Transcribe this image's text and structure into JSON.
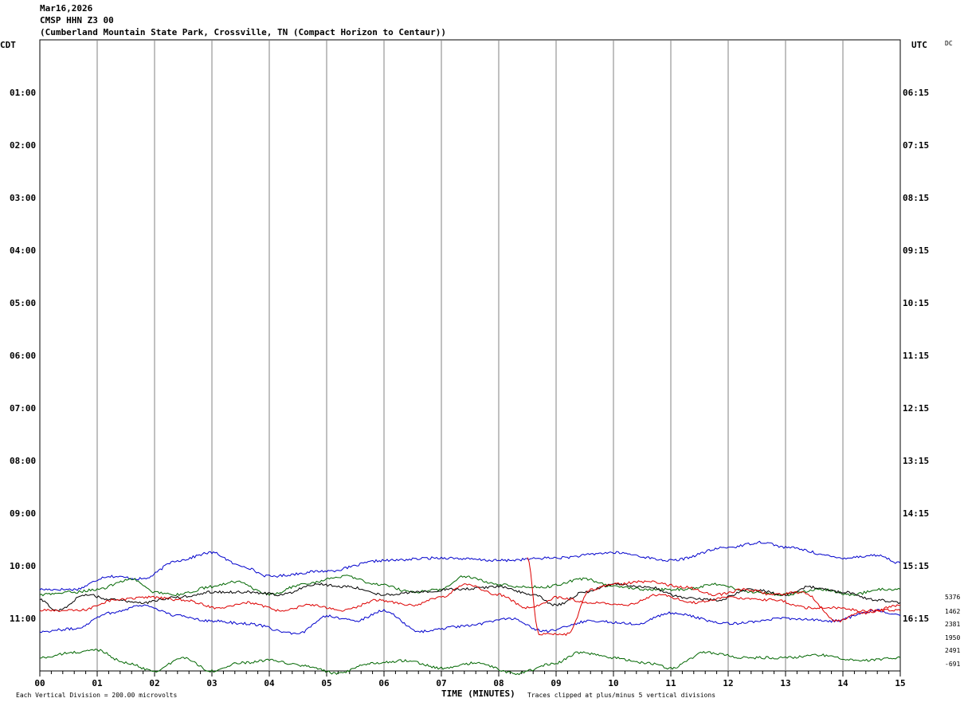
{
  "header": {
    "date": "Mar16,2026",
    "station": "CMSP HHN Z3 00",
    "location": "(Cumberland Mountain State Park, Crossville, TN (Compact Horizon to Centaur))"
  },
  "chart_data": {
    "type": "line",
    "title": "Mar16,2026",
    "left_axis_title": "CDT",
    "right_axis_title": "UTC",
    "right_corner_label": "DC",
    "xlabel": "TIME (MINUTES)",
    "x_ticks": [
      "00",
      "01",
      "02",
      "03",
      "04",
      "05",
      "06",
      "07",
      "08",
      "09",
      "10",
      "11",
      "12",
      "13",
      "14",
      "15"
    ],
    "xlim": [
      0,
      15
    ],
    "left_time_labels": [
      "01:00",
      "02:00",
      "03:00",
      "04:00",
      "05:00",
      "06:00",
      "07:00",
      "08:00",
      "09:00",
      "10:00",
      "11:00"
    ],
    "right_time_labels": [
      "06:15",
      "07:15",
      "08:15",
      "09:15",
      "10:15",
      "11:15",
      "12:15",
      "13:15",
      "14:15",
      "15:15",
      "16:15"
    ],
    "label_rows": [
      1,
      2,
      3,
      4,
      5,
      6,
      7,
      8,
      9,
      10,
      11
    ],
    "row_count": 12,
    "footer_left": "Each Vertical Division =  200.00 microvolts",
    "footer_right": "Traces clipped at plus/minus 5 vertical divisions",
    "trace_offset_labels": [
      "5376",
      "1462",
      "2381",
      "1950",
      "2491",
      "-691"
    ],
    "trace_colors": [
      "#0000cc",
      "#006600",
      "#000000",
      "#dd0000"
    ],
    "traces": [
      {
        "row": 10.0,
        "color": "#0000cc",
        "points": [
          [
            0,
            -0.45
          ],
          [
            0.6,
            -0.45
          ],
          [
            1.2,
            -0.2
          ],
          [
            1.8,
            -0.25
          ],
          [
            2.4,
            0.1
          ],
          [
            3.0,
            0.25
          ],
          [
            3.5,
            0.0
          ],
          [
            4.0,
            -0.2
          ],
          [
            5.0,
            -0.1
          ],
          [
            6.0,
            0.1
          ],
          [
            7.0,
            0.15
          ],
          [
            8.0,
            0.1
          ],
          [
            9.0,
            0.15
          ],
          [
            10.0,
            0.25
          ],
          [
            11.0,
            0.1
          ],
          [
            12.0,
            0.35
          ],
          [
            12.6,
            0.45
          ],
          [
            13.0,
            0.35
          ],
          [
            14.0,
            0.15
          ],
          [
            14.6,
            0.2
          ],
          [
            15.0,
            0.05
          ]
        ]
      },
      {
        "row": 10.8,
        "color": "#0000cc",
        "points": [
          [
            0,
            -0.45
          ],
          [
            0.6,
            -0.4
          ],
          [
            1.2,
            -0.1
          ],
          [
            1.8,
            0.05
          ],
          [
            2.4,
            -0.15
          ],
          [
            3.0,
            -0.25
          ],
          [
            3.6,
            -0.3
          ],
          [
            4.5,
            -0.5
          ],
          [
            5.0,
            -0.15
          ],
          [
            5.5,
            -0.25
          ],
          [
            6.0,
            -0.05
          ],
          [
            6.6,
            -0.45
          ],
          [
            7.4,
            -0.35
          ],
          [
            8.2,
            -0.2
          ],
          [
            8.8,
            -0.45
          ],
          [
            9.6,
            -0.25
          ],
          [
            10.4,
            -0.3
          ],
          [
            11.0,
            -0.1
          ],
          [
            12.0,
            -0.3
          ],
          [
            13.0,
            -0.2
          ],
          [
            13.8,
            -0.25
          ],
          [
            14.6,
            -0.05
          ],
          [
            15.0,
            -0.15
          ]
        ]
      },
      {
        "row": 11.8,
        "color": "#006600",
        "points": [
          [
            0,
            0.05
          ],
          [
            0.6,
            0.15
          ],
          [
            1.0,
            0.2
          ],
          [
            1.5,
            -0.05
          ],
          [
            2.0,
            -0.2
          ],
          [
            2.5,
            0.05
          ],
          [
            3.0,
            -0.2
          ],
          [
            3.5,
            -0.05
          ],
          [
            4.0,
            0.0
          ],
          [
            4.6,
            -0.1
          ],
          [
            5.2,
            -0.25
          ],
          [
            5.8,
            -0.05
          ],
          [
            6.4,
            0.0
          ],
          [
            7.0,
            -0.15
          ],
          [
            7.6,
            -0.05
          ],
          [
            8.3,
            -0.25
          ],
          [
            9.0,
            -0.05
          ],
          [
            9.4,
            0.15
          ],
          [
            10.0,
            0.05
          ],
          [
            10.6,
            -0.05
          ],
          [
            11.0,
            -0.15
          ],
          [
            11.6,
            0.15
          ],
          [
            12.3,
            0.05
          ],
          [
            13.0,
            0.05
          ],
          [
            13.6,
            0.1
          ],
          [
            14.3,
            0.0
          ],
          [
            15.0,
            0.05
          ]
        ]
      },
      {
        "row": 10.5,
        "color": "#006600",
        "points": [
          [
            0,
            -0.05
          ],
          [
            0.6,
            0.0
          ],
          [
            1.0,
            0.05
          ],
          [
            1.6,
            0.25
          ],
          [
            2.0,
            0.0
          ],
          [
            2.4,
            -0.05
          ],
          [
            3.0,
            0.1
          ],
          [
            3.4,
            0.2
          ],
          [
            4.0,
            -0.05
          ],
          [
            4.6,
            0.15
          ],
          [
            5.3,
            0.3
          ],
          [
            5.9,
            0.15
          ],
          [
            6.5,
            0.0
          ],
          [
            7.0,
            0.05
          ],
          [
            7.4,
            0.3
          ],
          [
            8.0,
            0.15
          ],
          [
            8.4,
            0.1
          ],
          [
            8.8,
            0.1
          ],
          [
            9.5,
            0.25
          ],
          [
            10.0,
            0.1
          ],
          [
            10.6,
            0.05
          ],
          [
            11.2,
            0.05
          ],
          [
            11.8,
            0.15
          ],
          [
            12.4,
            0.0
          ],
          [
            13.0,
            -0.05
          ],
          [
            13.6,
            0.05
          ],
          [
            14.2,
            -0.05
          ],
          [
            14.6,
            0.05
          ],
          [
            15.0,
            0.05
          ]
        ]
      },
      {
        "row": 10.8,
        "color": "#000000",
        "points": [
          [
            0,
            0.15
          ],
          [
            0.3,
            -0.05
          ],
          [
            0.8,
            0.25
          ],
          [
            1.3,
            0.15
          ],
          [
            1.8,
            0.1
          ],
          [
            2.4,
            0.2
          ],
          [
            3.0,
            0.3
          ],
          [
            3.6,
            0.3
          ],
          [
            4.2,
            0.25
          ],
          [
            4.8,
            0.45
          ],
          [
            5.4,
            0.4
          ],
          [
            6.0,
            0.25
          ],
          [
            6.6,
            0.3
          ],
          [
            7.2,
            0.35
          ],
          [
            8.0,
            0.4
          ],
          [
            8.6,
            0.25
          ],
          [
            9.0,
            0.05
          ],
          [
            9.5,
            0.3
          ],
          [
            10.0,
            0.45
          ],
          [
            10.6,
            0.4
          ],
          [
            11.2,
            0.2
          ],
          [
            11.8,
            0.15
          ],
          [
            12.4,
            0.35
          ],
          [
            13.0,
            0.25
          ],
          [
            13.4,
            0.4
          ],
          [
            14.0,
            0.3
          ],
          [
            14.6,
            0.15
          ],
          [
            15.0,
            0.1
          ]
        ]
      },
      {
        "row": 11.2,
        "color": "#dd0000",
        "points": [
          [
            0,
            0.35
          ],
          [
            0.7,
            0.35
          ],
          [
            1.3,
            0.55
          ],
          [
            1.9,
            0.6
          ],
          [
            2.5,
            0.55
          ],
          [
            3.1,
            0.4
          ],
          [
            3.6,
            0.5
          ],
          [
            4.2,
            0.35
          ],
          [
            4.7,
            0.45
          ],
          [
            5.3,
            0.35
          ],
          [
            5.9,
            0.55
          ],
          [
            6.5,
            0.45
          ],
          [
            7.0,
            0.6
          ],
          [
            7.4,
            0.85
          ],
          [
            8.0,
            0.65
          ],
          [
            8.5,
            0.4
          ],
          [
            8.7,
            0.45
          ],
          [
            9.0,
            0.6
          ],
          [
            9.6,
            0.5
          ],
          [
            10.2,
            0.45
          ],
          [
            10.8,
            0.65
          ],
          [
            11.4,
            0.5
          ],
          [
            12.0,
            0.6
          ],
          [
            12.8,
            0.55
          ],
          [
            13.4,
            0.4
          ],
          [
            14.0,
            0.4
          ],
          [
            14.4,
            0.3
          ],
          [
            15.0,
            0.45
          ]
        ]
      },
      {
        "row": 10.8,
        "color": "#dd0000",
        "points": [
          [
            8.5,
            0.95
          ],
          [
            8.7,
            -0.5
          ],
          [
            9.2,
            -0.5
          ],
          [
            9.6,
            0.35
          ],
          [
            10.0,
            0.45
          ],
          [
            10.6,
            0.5
          ],
          [
            11.2,
            0.4
          ],
          [
            11.8,
            0.25
          ],
          [
            12.3,
            0.35
          ],
          [
            12.8,
            0.25
          ],
          [
            13.3,
            0.3
          ],
          [
            13.9,
            -0.25
          ],
          [
            14.4,
            -0.05
          ],
          [
            15.0,
            -0.05
          ]
        ]
      }
    ]
  }
}
